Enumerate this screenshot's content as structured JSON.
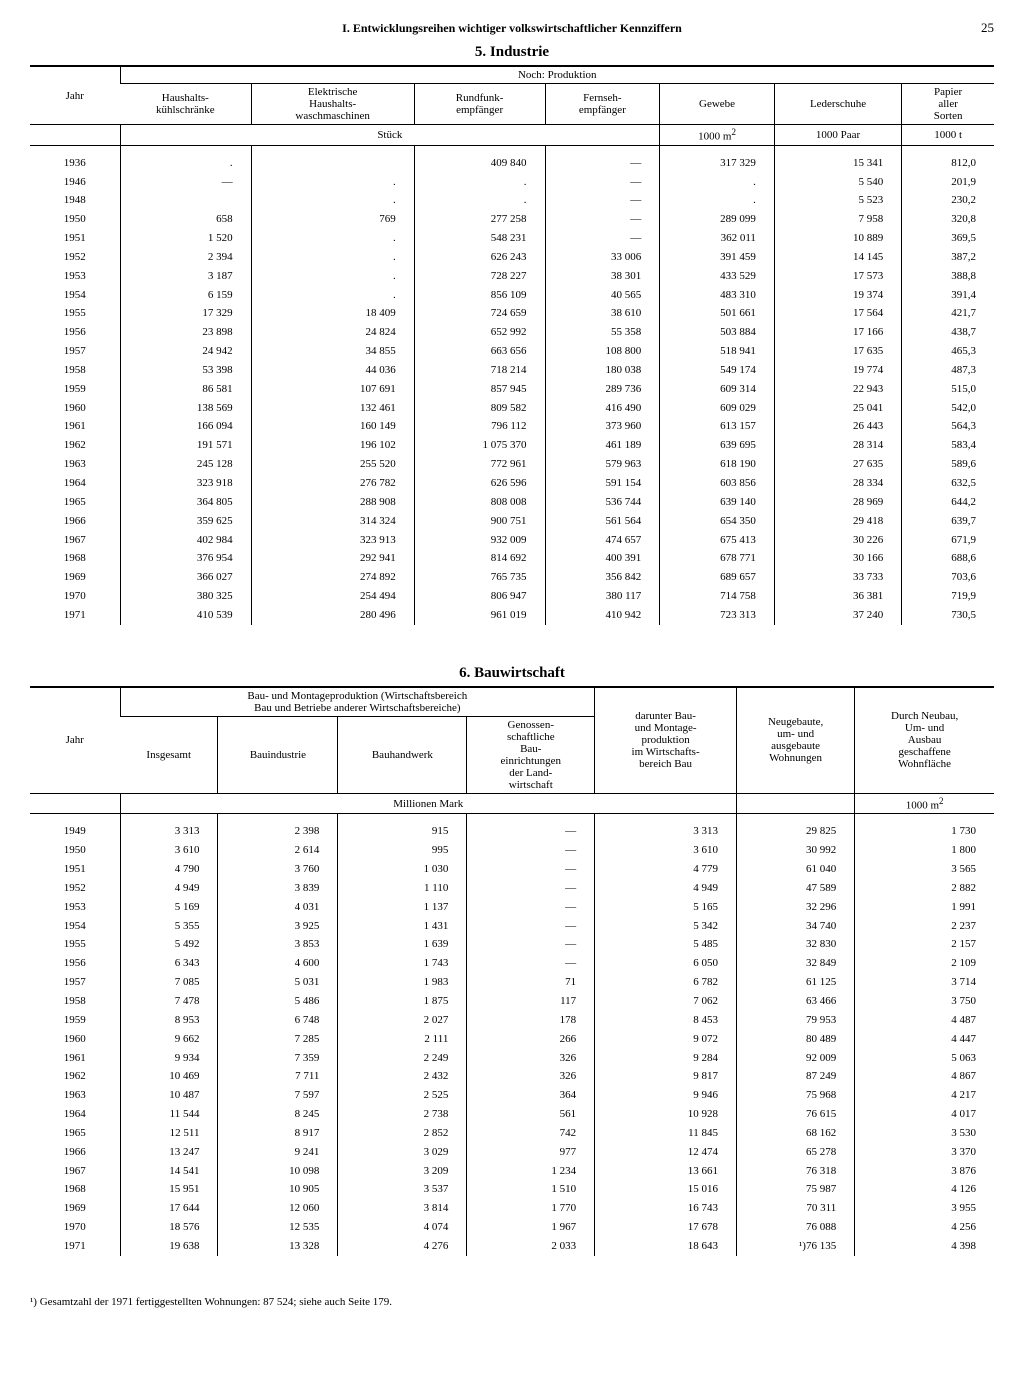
{
  "header": {
    "title": "I. Entwicklungsreihen wichtiger volkswirtschaftlicher Kennziffern",
    "page_number": "25"
  },
  "section5": {
    "title": "5. Industrie",
    "super_header": "Noch: Produktion",
    "col_year": "Jahr",
    "columns": [
      "Haushalts-\nkühlschränke",
      "Elektrische\nHaushalts-\nwaschmaschinen",
      "Rundfunk-\nempfänger",
      "Fernseh-\nempfänger",
      "Gewebe",
      "Lederschuhe",
      "Papier\naller\nSorten"
    ],
    "unit_span": "Stück",
    "units_tail": [
      "1000 m²",
      "1000 Paar",
      "1000 t"
    ],
    "rows": [
      [
        "1936",
        ".",
        "",
        "409 840",
        "—",
        "317 329",
        "15 341",
        "812,0"
      ],
      [
        "1946",
        "—",
        ".",
        ".",
        "—",
        ".",
        "5 540",
        "201,9"
      ],
      [
        "1948",
        "",
        ".",
        ".",
        "—",
        ".",
        "5 523",
        "230,2"
      ],
      [
        "1950",
        "658",
        "769",
        "277 258",
        "—",
        "289 099",
        "7 958",
        "320,8"
      ],
      [
        "1951",
        "1 520",
        ".",
        "548 231",
        "—",
        "362 011",
        "10 889",
        "369,5"
      ],
      [
        "1952",
        "2 394",
        ".",
        "626 243",
        "33 006",
        "391 459",
        "14 145",
        "387,2"
      ],
      [
        "1953",
        "3 187",
        ".",
        "728 227",
        "38 301",
        "433 529",
        "17 573",
        "388,8"
      ],
      [
        "1954",
        "6 159",
        ".",
        "856 109",
        "40 565",
        "483 310",
        "19 374",
        "391,4"
      ],
      [
        "1955",
        "17 329",
        "18 409",
        "724 659",
        "38 610",
        "501 661",
        "17 564",
        "421,7"
      ],
      [
        "1956",
        "23 898",
        "24 824",
        "652 992",
        "55 358",
        "503 884",
        "17 166",
        "438,7"
      ],
      [
        "1957",
        "24 942",
        "34 855",
        "663 656",
        "108 800",
        "518 941",
        "17 635",
        "465,3"
      ],
      [
        "1958",
        "53 398",
        "44 036",
        "718 214",
        "180 038",
        "549 174",
        "19 774",
        "487,3"
      ],
      [
        "1959",
        "86 581",
        "107 691",
        "857 945",
        "289 736",
        "609 314",
        "22 943",
        "515,0"
      ],
      [
        "1960",
        "138 569",
        "132 461",
        "809 582",
        "416 490",
        "609 029",
        "25 041",
        "542,0"
      ],
      [
        "1961",
        "166 094",
        "160 149",
        "796 112",
        "373 960",
        "613 157",
        "26 443",
        "564,3"
      ],
      [
        "1962",
        "191 571",
        "196 102",
        "1 075 370",
        "461 189",
        "639 695",
        "28 314",
        "583,4"
      ],
      [
        "1963",
        "245 128",
        "255 520",
        "772 961",
        "579 963",
        "618 190",
        "27 635",
        "589,6"
      ],
      [
        "1964",
        "323 918",
        "276 782",
        "626 596",
        "591 154",
        "603 856",
        "28 334",
        "632,5"
      ],
      [
        "1965",
        "364 805",
        "288 908",
        "808 008",
        "536 744",
        "639 140",
        "28 969",
        "644,2"
      ],
      [
        "1966",
        "359 625",
        "314 324",
        "900 751",
        "561 564",
        "654 350",
        "29 418",
        "639,7"
      ],
      [
        "1967",
        "402 984",
        "323 913",
        "932 009",
        "474 657",
        "675 413",
        "30 226",
        "671,9"
      ],
      [
        "1968",
        "376 954",
        "292 941",
        "814 692",
        "400 391",
        "678 771",
        "30 166",
        "688,6"
      ],
      [
        "1969",
        "366 027",
        "274 892",
        "765 735",
        "356 842",
        "689 657",
        "33 733",
        "703,6"
      ],
      [
        "1970",
        "380 325",
        "254 494",
        "806 947",
        "380 117",
        "714 758",
        "36 381",
        "719,9"
      ],
      [
        "1971",
        "410 539",
        "280 496",
        "961 019",
        "410 942",
        "723 313",
        "37 240",
        "730,5"
      ]
    ]
  },
  "section6": {
    "title": "6. Bauwirtschaft",
    "col_year": "Jahr",
    "super_header": "Bau- und Montageproduktion (Wirtschaftsbereich\nBau und Betriebe anderer Wirtschaftsbereiche)",
    "columns_group": [
      "Insgesamt",
      "Bauindustrie",
      "Bauhandwerk",
      "Genossen-\nschaftliche\nBau-\neinrichtungen\nder Land-\nwirtschaft"
    ],
    "col5": "darunter Bau-\nund Montage-\nproduktion\nim Wirtschafts-\nbereich Bau",
    "col6": "Neugebaute,\num- und\nausgebaute\nWohnungen",
    "col7": "Durch Neubau,\nUm- und\nAusbau\ngeschaffene\nWohnfläche",
    "unit_span": "Millionen Mark",
    "unit_tail": "1000 m²",
    "rows": [
      [
        "1949",
        "3 313",
        "2 398",
        "915",
        "—",
        "3 313",
        "29 825",
        "1 730"
      ],
      [
        "1950",
        "3 610",
        "2 614",
        "995",
        "—",
        "3 610",
        "30 992",
        "1 800"
      ],
      [
        "1951",
        "4 790",
        "3 760",
        "1 030",
        "—",
        "4 779",
        "61 040",
        "3 565"
      ],
      [
        "1952",
        "4 949",
        "3 839",
        "1 110",
        "—",
        "4 949",
        "47 589",
        "2 882"
      ],
      [
        "1953",
        "5 169",
        "4 031",
        "1 137",
        "—",
        "5 165",
        "32 296",
        "1 991"
      ],
      [
        "1954",
        "5 355",
        "3 925",
        "1 431",
        "—",
        "5 342",
        "34 740",
        "2 237"
      ],
      [
        "1955",
        "5 492",
        "3 853",
        "1 639",
        "—",
        "5 485",
        "32 830",
        "2 157"
      ],
      [
        "1956",
        "6 343",
        "4 600",
        "1 743",
        "—",
        "6 050",
        "32 849",
        "2 109"
      ],
      [
        "1957",
        "7 085",
        "5 031",
        "1 983",
        "71",
        "6 782",
        "61 125",
        "3 714"
      ],
      [
        "1958",
        "7 478",
        "5 486",
        "1 875",
        "117",
        "7 062",
        "63 466",
        "3 750"
      ],
      [
        "1959",
        "8 953",
        "6 748",
        "2 027",
        "178",
        "8 453",
        "79 953",
        "4 487"
      ],
      [
        "1960",
        "9 662",
        "7 285",
        "2 111",
        "266",
        "9 072",
        "80 489",
        "4 447"
      ],
      [
        "1961",
        "9 934",
        "7 359",
        "2 249",
        "326",
        "9 284",
        "92 009",
        "5 063"
      ],
      [
        "1962",
        "10 469",
        "7 711",
        "2 432",
        "326",
        "9 817",
        "87 249",
        "4 867"
      ],
      [
        "1963",
        "10 487",
        "7 597",
        "2 525",
        "364",
        "9 946",
        "75 968",
        "4 217"
      ],
      [
        "1964",
        "11 544",
        "8 245",
        "2 738",
        "561",
        "10 928",
        "76 615",
        "4 017"
      ],
      [
        "1965",
        "12 511",
        "8 917",
        "2 852",
        "742",
        "11 845",
        "68 162",
        "3 530"
      ],
      [
        "1966",
        "13 247",
        "9 241",
        "3 029",
        "977",
        "12 474",
        "65 278",
        "3 370"
      ],
      [
        "1967",
        "14 541",
        "10 098",
        "3 209",
        "1 234",
        "13 661",
        "76 318",
        "3 876"
      ],
      [
        "1968",
        "15 951",
        "10 905",
        "3 537",
        "1 510",
        "15 016",
        "75 987",
        "4 126"
      ],
      [
        "1969",
        "17 644",
        "12 060",
        "3 814",
        "1 770",
        "16 743",
        "70 311",
        "3 955"
      ],
      [
        "1970",
        "18 576",
        "12 535",
        "4 074",
        "1 967",
        "17 678",
        "76 088",
        "4 256"
      ],
      [
        "1971",
        "19 638",
        "13 328",
        "4 276",
        "2 033",
        "18 643",
        "¹)76 135",
        "4 398"
      ]
    ]
  },
  "footnote": "¹) Gesamtzahl der 1971 fertiggestellten Wohnungen: 87 524; siehe auch Seite 179."
}
